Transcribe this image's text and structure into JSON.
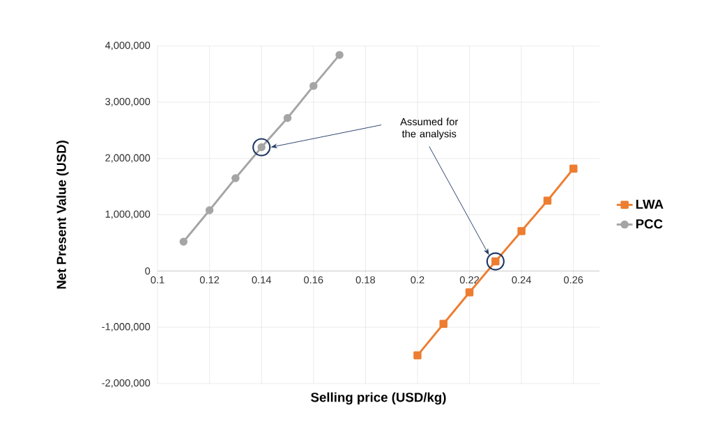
{
  "chart_data": {
    "type": "line",
    "xlabel": "Selling price (USD/kg)",
    "ylabel": "Net Present Value (USD)",
    "xlim": [
      0.1,
      0.27
    ],
    "ylim": [
      -2000000,
      4000000
    ],
    "xticks": [
      {
        "value": 0.1,
        "label": "0.1"
      },
      {
        "value": 0.12,
        "label": "0.12"
      },
      {
        "value": 0.14,
        "label": "0.14"
      },
      {
        "value": 0.16,
        "label": "0.16"
      },
      {
        "value": 0.18,
        "label": "0.18"
      },
      {
        "value": 0.2,
        "label": "0.2"
      },
      {
        "value": 0.22,
        "label": "0.22"
      },
      {
        "value": 0.24,
        "label": "0.24"
      },
      {
        "value": 0.26,
        "label": "0.26"
      }
    ],
    "yticks": [
      {
        "value": -2000000,
        "label": "-2,000,000"
      },
      {
        "value": -1000000,
        "label": "-1,000,000"
      },
      {
        "value": 0,
        "label": "0"
      },
      {
        "value": 1000000,
        "label": "1,000,000"
      },
      {
        "value": 2000000,
        "label": "2,000,000"
      },
      {
        "value": 3000000,
        "label": "3,000,000"
      },
      {
        "value": 4000000,
        "label": "4,000,000"
      }
    ],
    "grid": true,
    "legend": "right",
    "line_style": "solid",
    "series": [
      {
        "name": "LWA",
        "color": "#ed7d31",
        "marker": "square",
        "x": [
          0.2,
          0.21,
          0.22,
          0.23,
          0.24,
          0.25,
          0.26
        ],
        "values": [
          -1500000,
          -940000,
          -380000,
          170000,
          710000,
          1250000,
          1820000
        ]
      },
      {
        "name": "PCC",
        "color": "#a5a5a5",
        "marker": "circle",
        "x": [
          0.11,
          0.12,
          0.13,
          0.14,
          0.15,
          0.16,
          0.17
        ],
        "values": [
          520000,
          1080000,
          1650000,
          2200000,
          2720000,
          3290000,
          3840000
        ]
      }
    ],
    "annotations": [
      "Assumed for the analysis"
    ]
  }
}
